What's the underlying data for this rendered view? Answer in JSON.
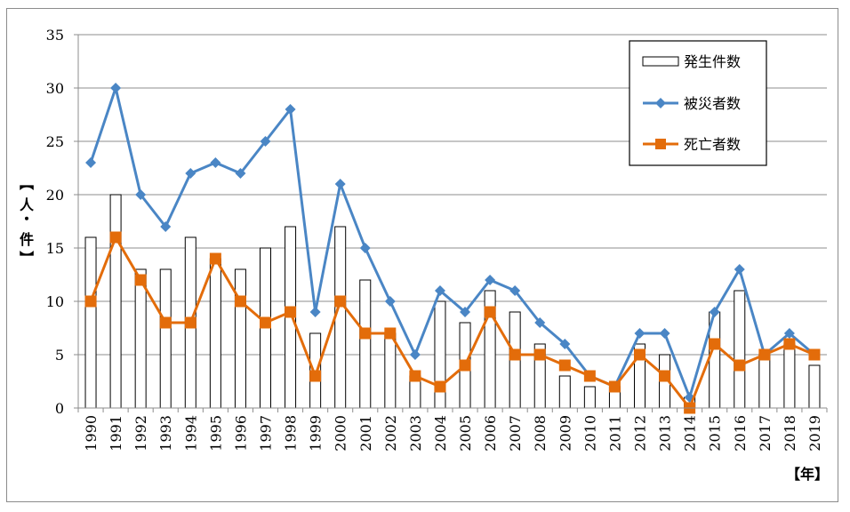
{
  "chart_data": {
    "type": "bar+line",
    "categories": [
      "1990",
      "1991",
      "1992",
      "1993",
      "1994",
      "1995",
      "1996",
      "1997",
      "1998",
      "1999",
      "2000",
      "2001",
      "2002",
      "2003",
      "2004",
      "2005",
      "2006",
      "2007",
      "2008",
      "2009",
      "2010",
      "2011",
      "2012",
      "2013",
      "2014",
      "2015",
      "2016",
      "2017",
      "2018",
      "2019"
    ],
    "series": [
      {
        "name": "発生件数",
        "kind": "bar",
        "color": "#000000",
        "values": [
          16,
          20,
          13,
          13,
          16,
          14,
          13,
          15,
          17,
          7,
          17,
          12,
          7,
          3,
          10,
          8,
          11,
          9,
          6,
          3,
          2,
          2,
          6,
          5,
          1,
          9,
          11,
          5,
          6,
          4
        ]
      },
      {
        "name": "被災者数",
        "kind": "line",
        "marker": "diamond",
        "color": "#4a86c5",
        "values": [
          23,
          30,
          20,
          17,
          22,
          23,
          22,
          25,
          28,
          9,
          21,
          15,
          10,
          5,
          11,
          9,
          12,
          11,
          8,
          6,
          3,
          2,
          7,
          7,
          1,
          9,
          13,
          5,
          7,
          5
        ]
      },
      {
        "name": "死亡者数",
        "kind": "line",
        "marker": "square",
        "color": "#e36c0a",
        "values": [
          10,
          16,
          12,
          8,
          8,
          14,
          10,
          8,
          9,
          3,
          10,
          7,
          7,
          3,
          2,
          4,
          9,
          5,
          5,
          4,
          3,
          2,
          5,
          3,
          0,
          6,
          4,
          5,
          6,
          5
        ]
      }
    ],
    "ylim": [
      0,
      35
    ],
    "yticks": [
      0,
      5,
      10,
      15,
      20,
      25,
      30,
      35
    ],
    "ylabel": "【人・件】",
    "ylabel_chars": [
      "【",
      "人",
      "・",
      "件",
      "】"
    ],
    "xlabel": "【年】",
    "legend_position": "top-right",
    "grid": true
  }
}
